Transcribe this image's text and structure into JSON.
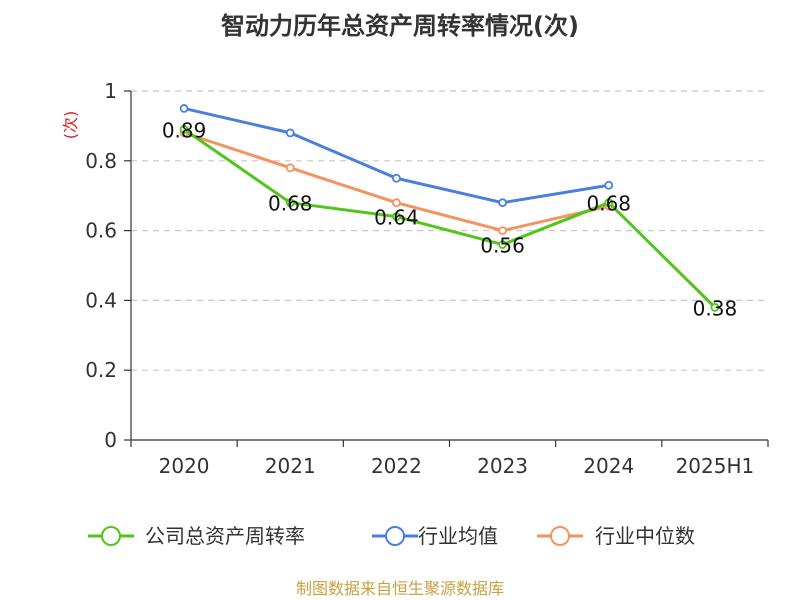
{
  "chart_data": {
    "type": "line",
    "title": "智动力历年总资产周转率情况(次)",
    "ylabel": "(次)",
    "xlabel": "",
    "categories": [
      "2020",
      "2021",
      "2022",
      "2023",
      "2024",
      "2025H1"
    ],
    "ylim": [
      0,
      1
    ],
    "yticks": [
      "0",
      "0.2",
      "0.4",
      "0.6",
      "0.8",
      "1"
    ],
    "grid": true,
    "legend_position": "bottom",
    "series": [
      {
        "name": "公司总资产周转率",
        "color": "#52c41a",
        "values": [
          0.89,
          0.68,
          0.64,
          0.56,
          0.68,
          0.38
        ],
        "labels": [
          "0.89",
          "0.68",
          "0.64",
          "0.56",
          "0.68",
          "0.38"
        ]
      },
      {
        "name": "行业均值",
        "color": "#4a7fdc",
        "values": [
          0.95,
          0.88,
          0.75,
          0.68,
          0.73,
          null
        ]
      },
      {
        "name": "行业中位数",
        "color": "#f5925e",
        "values": [
          0.88,
          0.78,
          0.68,
          0.6,
          0.67,
          null
        ]
      }
    ]
  },
  "source": "制图数据来自恒生聚源数据库"
}
